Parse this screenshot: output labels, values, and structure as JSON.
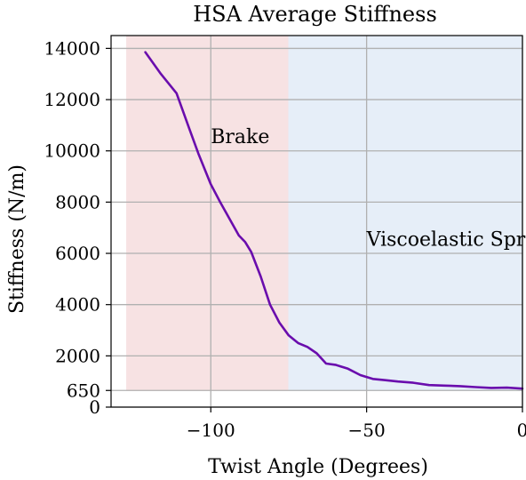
{
  "chart_data": {
    "type": "line",
    "title": "HSA Average Stiffness",
    "xlabel": "Twist Angle (Degrees)",
    "ylabel": "Stiffness (N/m)",
    "xlim": [
      -132,
      0
    ],
    "ylim": [
      0,
      14500
    ],
    "grid": true,
    "x_ticks": [
      -100,
      -50,
      0
    ],
    "x_tick_labels": [
      "−100",
      "−50",
      "0"
    ],
    "y_ticks": [
      0,
      650,
      2000,
      4000,
      6000,
      8000,
      10000,
      12000,
      14000
    ],
    "y_tick_labels": [
      "0",
      "650",
      "2000",
      "4000",
      "6000",
      "8000",
      "10000",
      "12000",
      "14000"
    ],
    "regions": [
      {
        "label": "Brake",
        "x_range": [
          -127,
          -75
        ],
        "y_range": [
          650,
          14500
        ],
        "color": "#f7e2e3",
        "label_at": [
          -100,
          10300
        ]
      },
      {
        "label": "Viscoelastic Spring",
        "x_range": [
          -75,
          0
        ],
        "y_range": [
          650,
          14500
        ],
        "color": "#e6eef8",
        "label_at": [
          -50,
          6300
        ]
      }
    ],
    "series": [
      {
        "color": "#6a0dad",
        "x": [
          -121,
          -116,
          -111,
          -107,
          -104,
          -100,
          -97,
          -94,
          -91,
          -89,
          -87,
          -84,
          -81,
          -78,
          -75,
          -72,
          -69,
          -66,
          -63,
          -60,
          -56,
          -52,
          -48,
          -44,
          -40,
          -35,
          -30,
          -25,
          -20,
          -15,
          -10,
          -5,
          0
        ],
        "y": [
          13850,
          13000,
          12250,
          10900,
          9900,
          8700,
          8000,
          7350,
          6700,
          6450,
          6050,
          5100,
          4000,
          3300,
          2800,
          2500,
          2350,
          2100,
          1700,
          1650,
          1500,
          1250,
          1100,
          1050,
          1000,
          950,
          860,
          840,
          820,
          780,
          750,
          760,
          720
        ]
      }
    ]
  }
}
